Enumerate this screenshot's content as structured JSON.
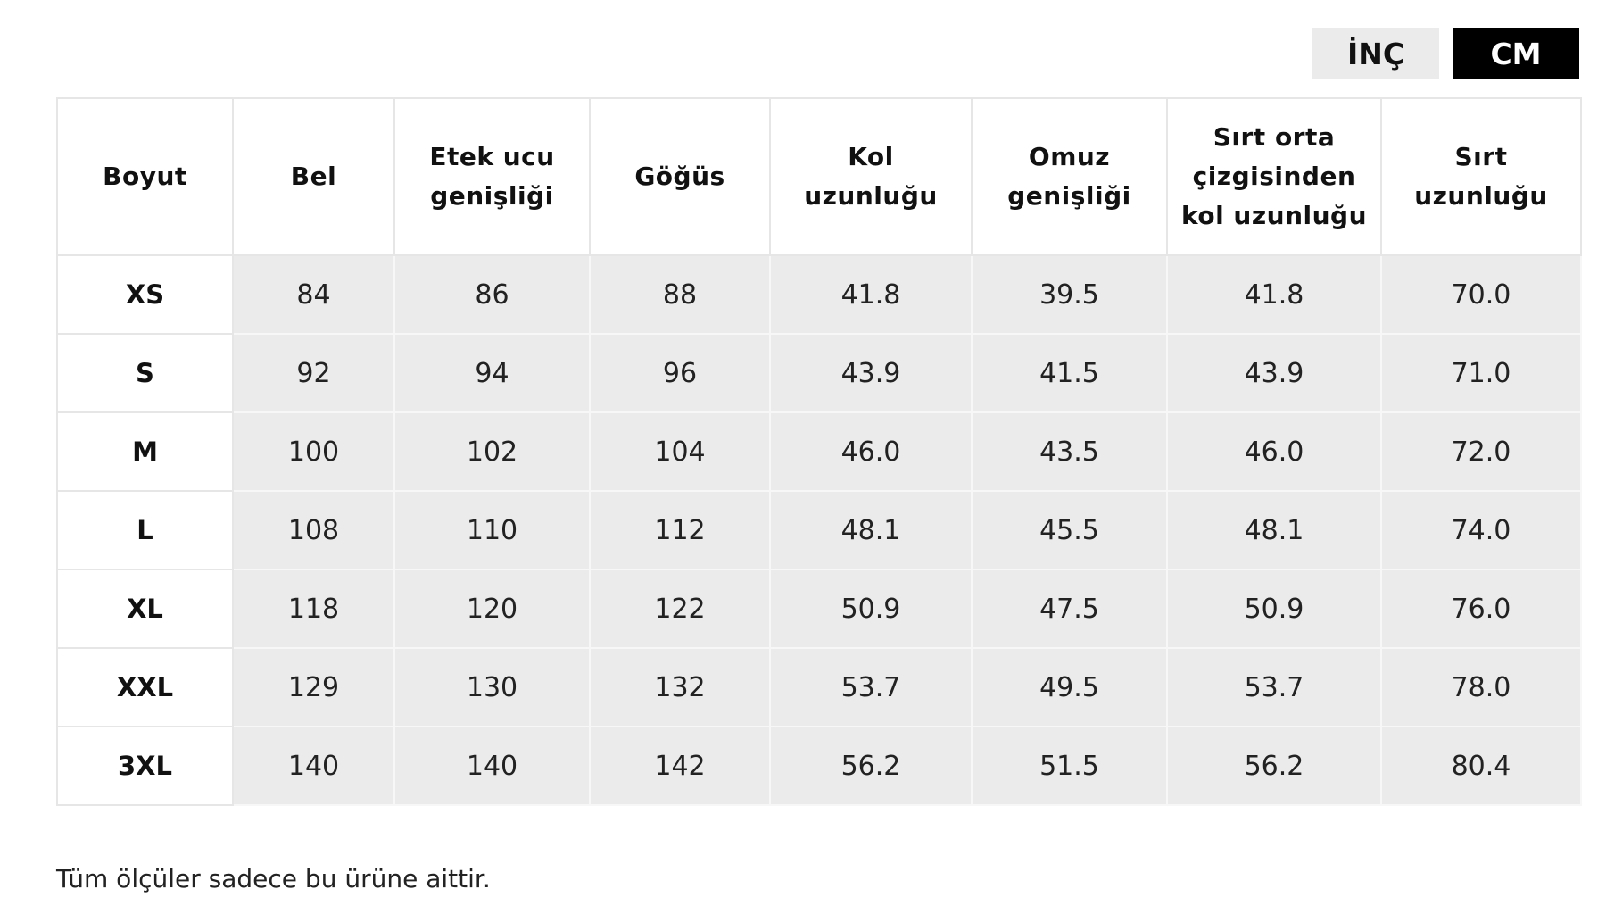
{
  "unit_toggle": {
    "inch_label": "İNÇ",
    "cm_label": "CM",
    "selected": "CM"
  },
  "table": {
    "headers": [
      "Boyut",
      "Bel",
      "Etek ucu genişliği",
      "Göğüs",
      "Kol uzunluğu",
      "Omuz genişliği",
      "Sırt orta çizgisinden kol uzunluğu",
      "Sırt uzunluğu"
    ],
    "rows": [
      [
        "XS",
        "84",
        "86",
        "88",
        "41.8",
        "39.5",
        "41.8",
        "70.0"
      ],
      [
        "S",
        "92",
        "94",
        "96",
        "43.9",
        "41.5",
        "43.9",
        "71.0"
      ],
      [
        "M",
        "100",
        "102",
        "104",
        "46.0",
        "43.5",
        "46.0",
        "72.0"
      ],
      [
        "L",
        "108",
        "110",
        "112",
        "48.1",
        "45.5",
        "48.1",
        "74.0"
      ],
      [
        "XL",
        "118",
        "120",
        "122",
        "50.9",
        "47.5",
        "50.9",
        "76.0"
      ],
      [
        "XXL",
        "129",
        "130",
        "132",
        "53.7",
        "49.5",
        "53.7",
        "78.0"
      ],
      [
        "3XL",
        "140",
        "140",
        "142",
        "56.2",
        "51.5",
        "56.2",
        "80.4"
      ]
    ]
  },
  "footnote": "Tüm ölçüler sadece bu ürüne aittir.",
  "colors": {
    "active_button_bg": "#000000",
    "inactive_button_bg": "#ebebeb",
    "cell_bg": "#ebebeb",
    "border": "#e6e6e6"
  }
}
